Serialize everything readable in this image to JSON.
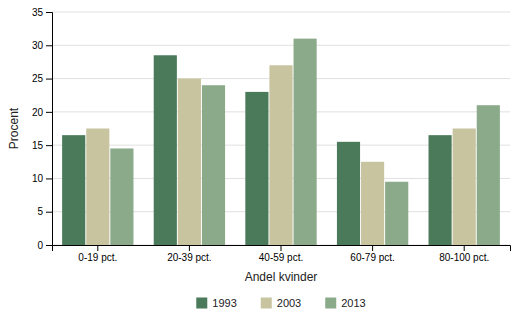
{
  "chart_data": {
    "type": "bar",
    "xlabel": "Andel kvinder",
    "ylabel": "Procent",
    "categories": [
      "0-19 pct.",
      "20-39 pct.",
      "40-59 pct.",
      "60-79 pct.",
      "80-100 pct."
    ],
    "series": [
      {
        "name": "1993",
        "color": "#4a7a5a",
        "values": [
          16.5,
          28.5,
          23.0,
          15.5,
          16.5
        ]
      },
      {
        "name": "2003",
        "color": "#c8c4a0",
        "values": [
          17.5,
          25.0,
          27.0,
          12.5,
          17.5
        ]
      },
      {
        "name": "2013",
        "color": "#8aaa8a",
        "values": [
          14.5,
          24.0,
          31.0,
          9.5,
          21.0
        ]
      }
    ],
    "ylim": [
      0,
      35
    ],
    "yticks": [
      0,
      5,
      10,
      15,
      20,
      25,
      30,
      35
    ],
    "grid": true,
    "legend": "bottom"
  }
}
